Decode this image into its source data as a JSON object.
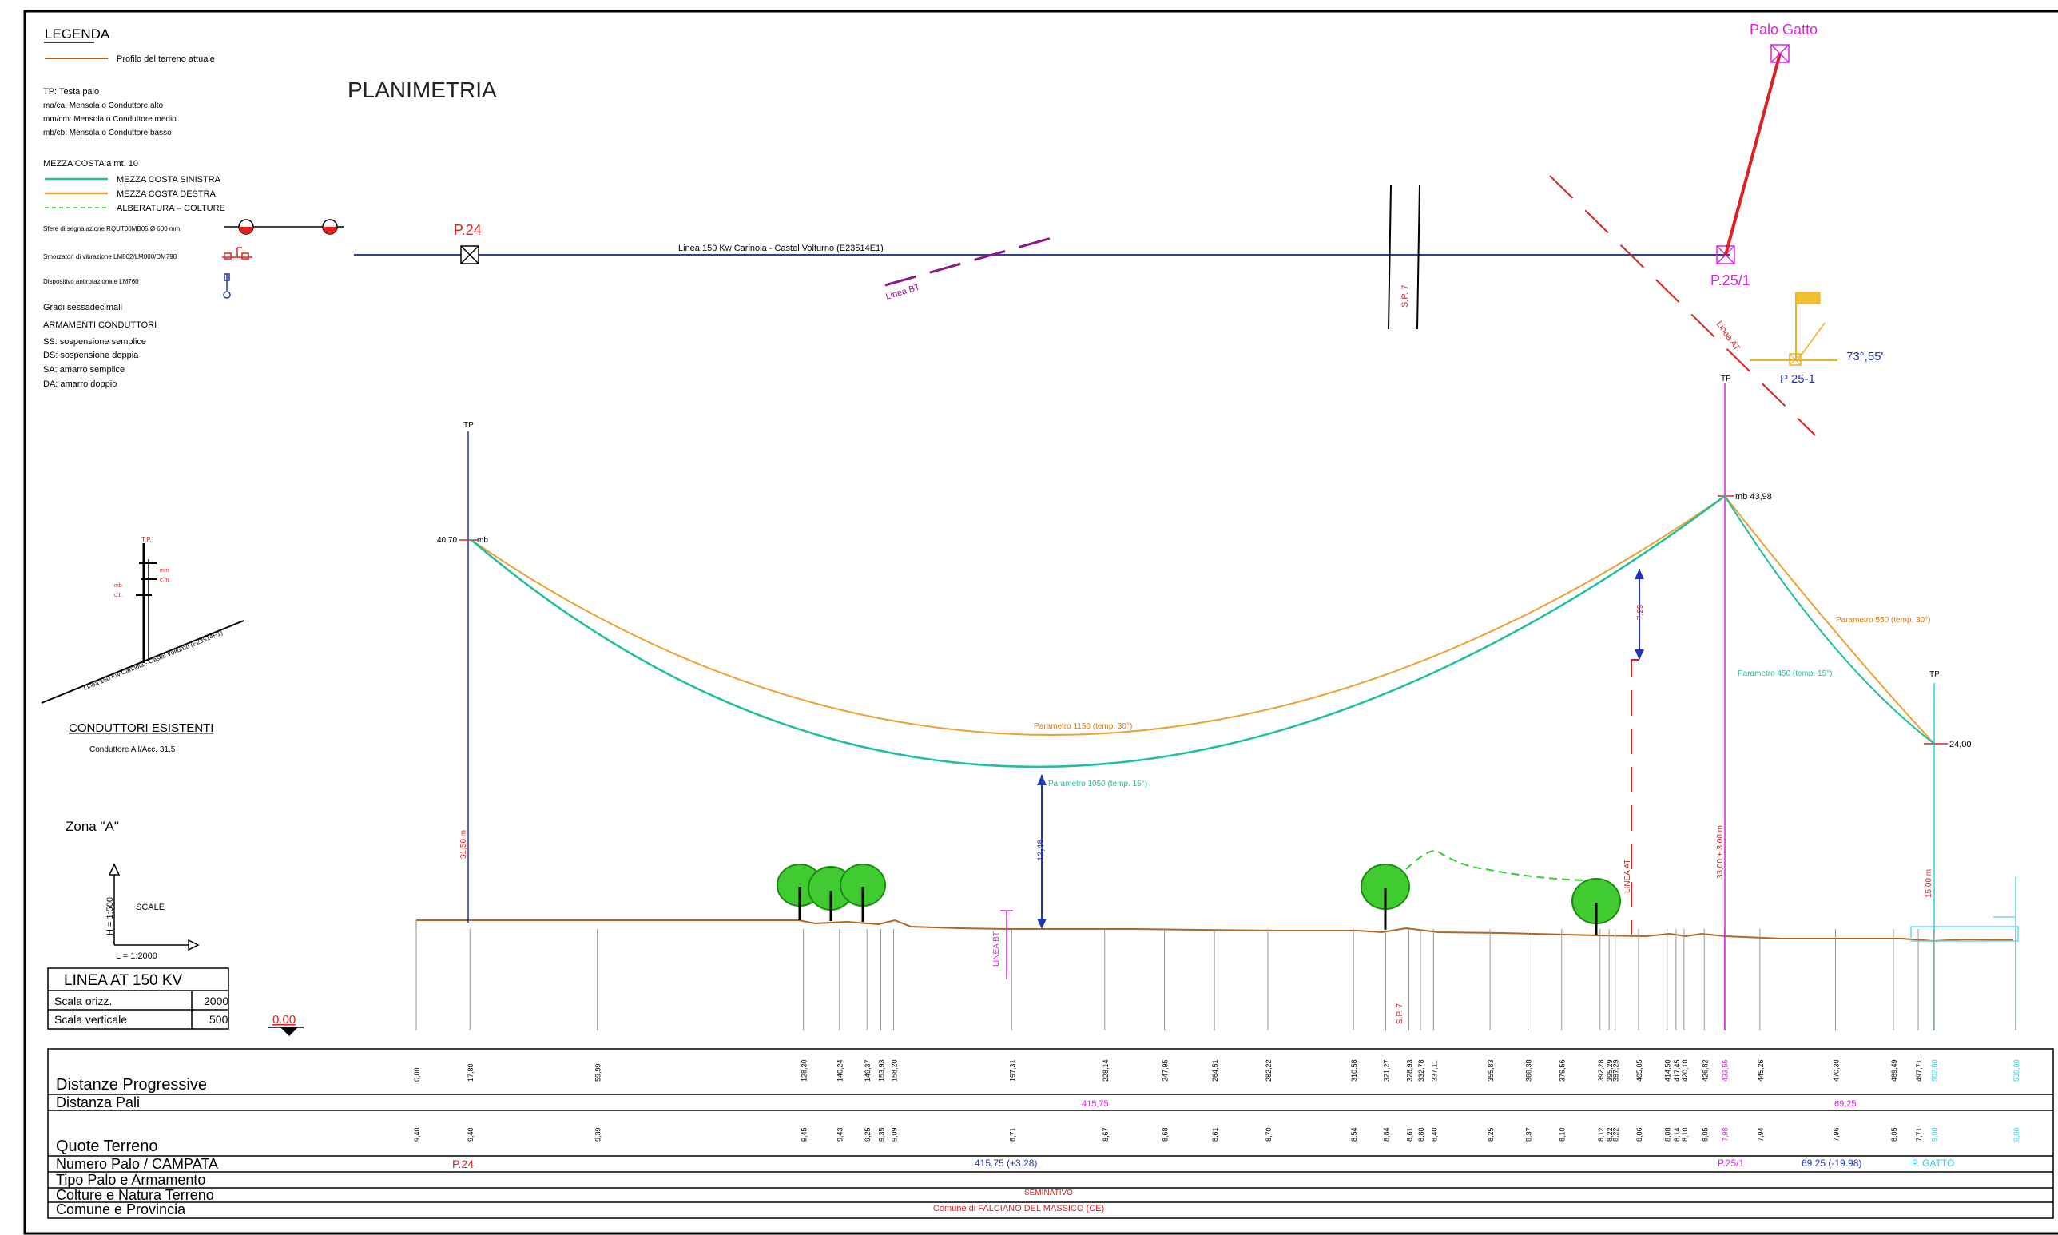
{
  "legend": {
    "title": "LEGENDA",
    "profile_label": "Profilo del terreno attuale",
    "abbrev": [
      "TP: Testa palo",
      "ma/ca: Mensola o Conduttore alto",
      "mm/cm: Mensola o Conduttore medio",
      "mb/cb: Mensola o Conduttore basso"
    ],
    "mezza_costa_title": "MEZZA COSTA a mt. 10",
    "mezza_sinistra": "MEZZA COSTA SINISTRA",
    "mezza_destra": "MEZZA COSTA DESTRA",
    "alberatura": "ALBERATURA – COLTURE",
    "sfere": "Sfere di segnalazione RQUT00MB05     Ø 600 mm",
    "smorzatori": "Smorzatori di vibrazione   LM802/LM800/DM798",
    "antirotazionale": "Dispositivo antirotazionale    LM760",
    "gradi": "Gradi sessadecimali",
    "armamenti_title": "ARMAMENTI CONDUTTORI",
    "armamenti": [
      "SS: sospensione semplice",
      "DS: sospensione doppia",
      "SA: amarro semplice",
      "DA: amarro doppio"
    ],
    "colors": {
      "profile": "#b5651d",
      "sinistra": "#1fbf9f",
      "destra": "#f0a030",
      "alberatura": "#33cc33"
    }
  },
  "plan": {
    "title": "PLANIMETRIA",
    "pole_start": "P.24",
    "pole_end": "P.25/1",
    "pole_gatto": "Palo Gatto",
    "line_label": "Linea 150 Kw Carinola - Castel Volturno    (E23514E1)",
    "linea_bt": "Linea BT",
    "sp7": "S.P. 7",
    "linea_at": "Linea AT",
    "p25_1": "P 25-1",
    "angle": "73°,55'"
  },
  "tower_sketch": {
    "tp": "T.P.",
    "mm": "mm",
    "cm": "c.m.",
    "mb": "mb",
    "cb": "c.b.",
    "line": "Linea 150 Kw Carinola - Castel Volturno  (E23514E1)"
  },
  "conduttori": {
    "title": "CONDUTTORI ESISTENTI",
    "value": "Conduttore All/Acc. 31.5"
  },
  "zona": "Zona \"A\"",
  "scale": {
    "label": "SCALE",
    "h": "H = 1:500",
    "l": "L = 1:2000"
  },
  "linea_box": {
    "title": "LINEA AT 150 KV",
    "rows": [
      [
        "Scala orizz.",
        "2000"
      ],
      [
        "Scala verticale",
        "500"
      ]
    ]
  },
  "datum": "0.00",
  "profile": {
    "tp_left": "TP",
    "tp_mid": "TP",
    "tp_right": "TP",
    "elev_left": "40,70",
    "mb_left": "mb",
    "elev_mid": "mb 43,98",
    "elev_right": "24,00",
    "param_1150": "Parametro 1150  (temp. 30°)",
    "param_1050": "Parametro 1050  (temp. 15°)",
    "param_550": "Parametro 550  (temp. 30°)",
    "param_450": "Parametro 450  (temp. 15°)",
    "clearance_left": "31,50 m",
    "clearance_mid": "12,48",
    "clearance_at": "7,29",
    "height_mid": "33,00 + 3,00 m",
    "height_right": "15,00 m",
    "linea_bt": "LINEA BT",
    "sp7": "S.P. 7",
    "linea_at": "LINEA AT"
  },
  "table": {
    "rows": [
      "Distanze Progressive",
      "Distanza Pali",
      "Quote Terreno",
      "Numero Palo / CAMPATA",
      "Tipo Palo e Armamento",
      "Colture e Natura Terreno",
      "Comune e Provincia"
    ],
    "distances": [
      "0,00",
      "17,80",
      "59,99",
      "128,30",
      "140,24",
      "149,37",
      "153,93",
      "158,20",
      "197,31",
      "228,14",
      "247,95",
      "264,51",
      "282,22",
      "310,58",
      "321,27",
      "328,93",
      "332,78",
      "337,11",
      "355,83",
      "368,38",
      "379,56",
      "392,28",
      "395,29",
      "397,29",
      "405,05",
      "414,50",
      "417,45",
      "420,10",
      "426,82",
      "433,55",
      "445,26",
      "470,30",
      "489,49",
      "497,71",
      "502,80",
      "530,00"
    ],
    "quotes": [
      "9,40",
      "9,40",
      "9,39",
      "9,45",
      "9,43",
      "9,25",
      "9,35",
      "9,09",
      "8,71",
      "8,67",
      "8,68",
      "8,61",
      "8,70",
      "8,54",
      "8,84",
      "8,61",
      "8,80",
      "8,40",
      "8,25",
      "8,37",
      "8,10",
      "8,12",
      "8,22",
      "8,22",
      "8,06",
      "8,08",
      "8,14",
      "8,10",
      "8,05",
      "7,98",
      "7,94",
      "7,96",
      "8,05",
      "7,71",
      "9,00",
      "9,00"
    ],
    "distanza_pali_1": "415,75",
    "distanza_pali_2": "69,25",
    "palo_p24": "P.24",
    "campata_1": "415.75 (+3.28)",
    "palo_p25": "P.25/1",
    "campata_2": "69.25 (-19.98)",
    "palo_gatto": "P. GATTO",
    "colture": "SEMINATIVO",
    "comune": "Comune di FALCIANO DEL MASSICO (CE)"
  }
}
